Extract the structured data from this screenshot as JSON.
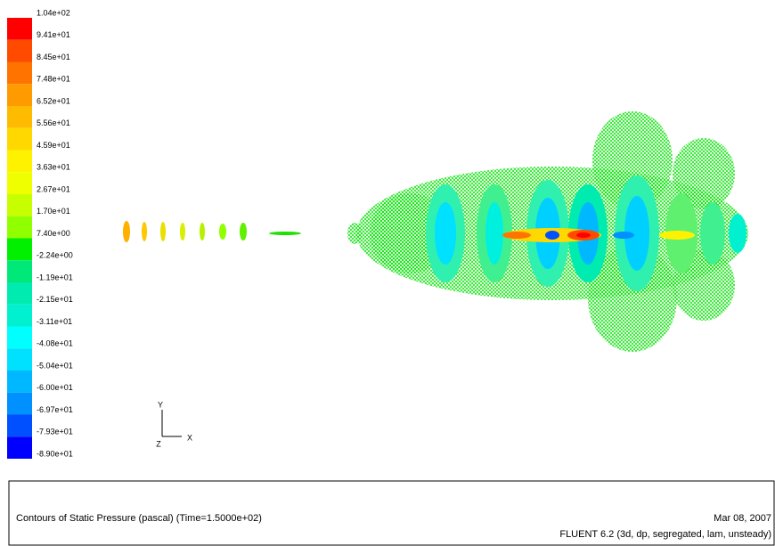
{
  "colorbar": {
    "labels": [
      "1.04e+02",
      "9.41e+01",
      "8.45e+01",
      "7.48e+01",
      "6.52e+01",
      "5.56e+01",
      "4.59e+01",
      "3.63e+01",
      "2.67e+01",
      "1.70e+01",
      "7.40e+00",
      "-2.24e+00",
      "-1.19e+01",
      "-2.15e+01",
      "-3.11e+01",
      "-4.08e+01",
      "-5.04e+01",
      "-6.00e+01",
      "-6.97e+01",
      "-7.93e+01",
      "-8.90e+01"
    ],
    "colors": [
      "#ff0000",
      "#ff4a00",
      "#ff7400",
      "#ff9a00",
      "#ffbb00",
      "#ffd800",
      "#fff200",
      "#f0ff00",
      "#c8ff00",
      "#90ff00",
      "#00f000",
      "#00e878",
      "#00ebb0",
      "#00f0d0",
      "#00ffff",
      "#00e0ff",
      "#00b8ff",
      "#0090ff",
      "#0050ff",
      "#0000ff"
    ]
  },
  "axes": {
    "y": "Y",
    "z": "Z",
    "x": "X"
  },
  "footer": {
    "title": "Contours of Static Pressure (pascal)  (Time=1.5000e+02)",
    "date": "Mar 08, 2007",
    "version": "FLUENT 6.2 (3d, dp, segregated, lam, unsteady)"
  }
}
